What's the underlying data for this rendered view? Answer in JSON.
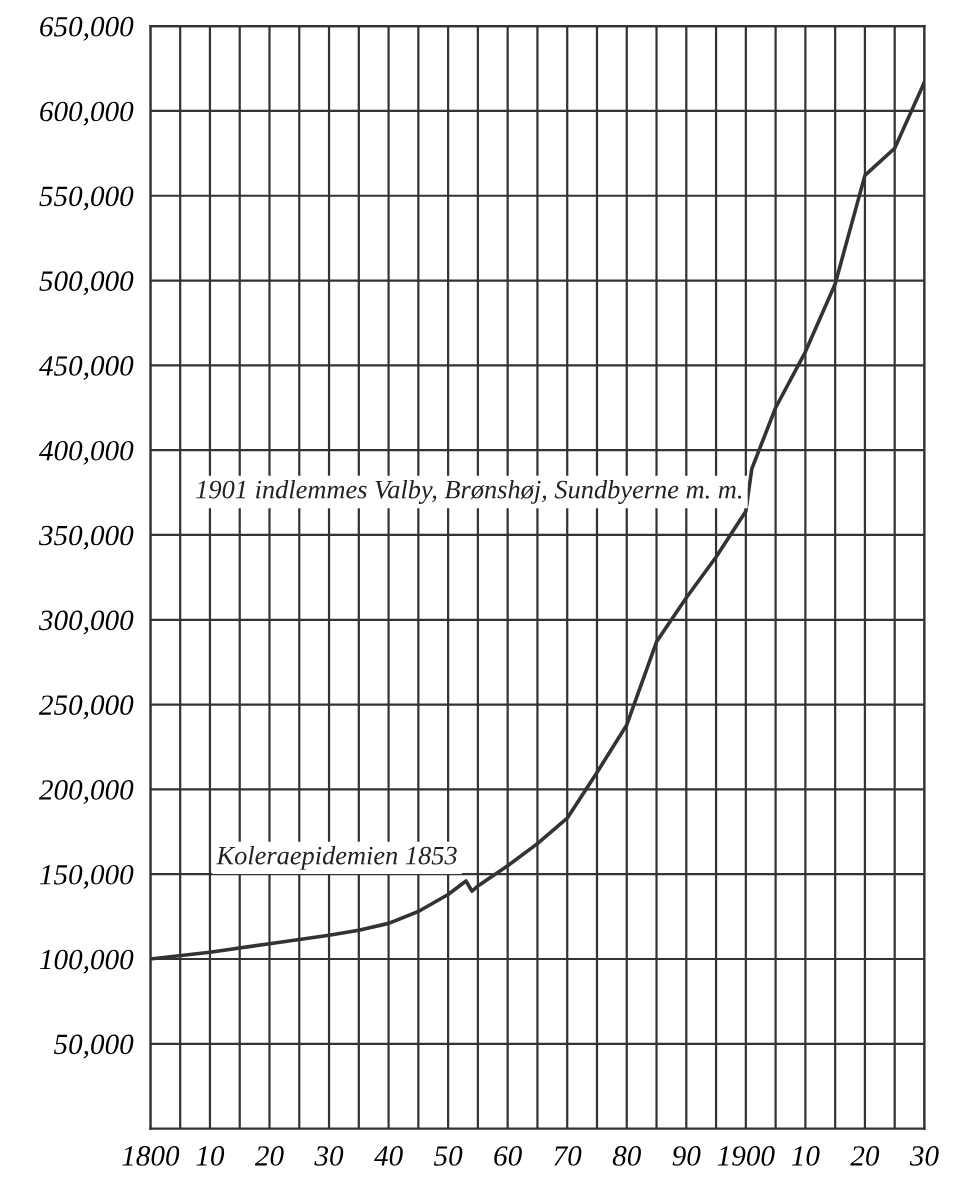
{
  "chart_data": {
    "type": "line",
    "x": [
      1800,
      1810,
      1820,
      1830,
      1835,
      1840,
      1845,
      1850,
      1853,
      1854,
      1855,
      1860,
      1865,
      1870,
      1875,
      1880,
      1885,
      1890,
      1895,
      1900,
      1901,
      1905,
      1910,
      1915,
      1920,
      1925,
      1930
    ],
    "series": [
      {
        "color": "#333333",
        "values": [
          100000,
          104000,
          109000,
          114000,
          117000,
          121000,
          128000,
          138000,
          146000,
          140000,
          143000,
          155000,
          168000,
          183000,
          210000,
          238000,
          287000,
          313000,
          337000,
          364000,
          389000,
          425000,
          458000,
          498000,
          562000,
          578000,
          617000
        ]
      }
    ],
    "xlim": [
      1800,
      1930
    ],
    "xticks": [
      {
        "value": 1800,
        "label": "1800"
      },
      {
        "value": 1805,
        "label": null
      },
      {
        "value": 1810,
        "label": "10"
      },
      {
        "value": 1815,
        "label": null
      },
      {
        "value": 1820,
        "label": "20"
      },
      {
        "value": 1825,
        "label": null
      },
      {
        "value": 1830,
        "label": "30"
      },
      {
        "value": 1835,
        "label": null
      },
      {
        "value": 1840,
        "label": "40"
      },
      {
        "value": 1845,
        "label": null
      },
      {
        "value": 1850,
        "label": "50"
      },
      {
        "value": 1855,
        "label": null
      },
      {
        "value": 1860,
        "label": "60"
      },
      {
        "value": 1865,
        "label": null
      },
      {
        "value": 1870,
        "label": "70"
      },
      {
        "value": 1875,
        "label": null
      },
      {
        "value": 1880,
        "label": "80"
      },
      {
        "value": 1885,
        "label": null
      },
      {
        "value": 1890,
        "label": "90"
      },
      {
        "value": 1895,
        "label": null
      },
      {
        "value": 1900,
        "label": "1900"
      },
      {
        "value": 1905,
        "label": null
      },
      {
        "value": 1910,
        "label": "10"
      },
      {
        "value": 1915,
        "label": null
      },
      {
        "value": 1920,
        "label": "20"
      },
      {
        "value": 1925,
        "label": null
      },
      {
        "value": 1930,
        "label": "30"
      }
    ],
    "ylim": [
      0,
      650000
    ],
    "yticks": [
      {
        "value": 50000,
        "label": "50,000"
      },
      {
        "value": 100000,
        "label": "100,000"
      },
      {
        "value": 150000,
        "label": "150,000"
      },
      {
        "value": 200000,
        "label": "200,000"
      },
      {
        "value": 250000,
        "label": "250,000"
      },
      {
        "value": 300000,
        "label": "300,000"
      },
      {
        "value": 350000,
        "label": "350,000"
      },
      {
        "value": 400000,
        "label": "400,000"
      },
      {
        "value": 450000,
        "label": "450,000"
      },
      {
        "value": 500000,
        "label": "500,000"
      },
      {
        "value": 550000,
        "label": "550,000"
      },
      {
        "value": 600000,
        "label": "600,000"
      },
      {
        "value": 650000,
        "label": "650,000"
      }
    ],
    "grid": true,
    "annotations": [
      {
        "text": "1901 indlemmes Valby, Brønshøj, Sundbyerne m. m.",
        "x": 1901,
        "y": 389000
      },
      {
        "text": "Koleraepidemien 1853",
        "x": 1853,
        "y": 146000
      }
    ]
  }
}
